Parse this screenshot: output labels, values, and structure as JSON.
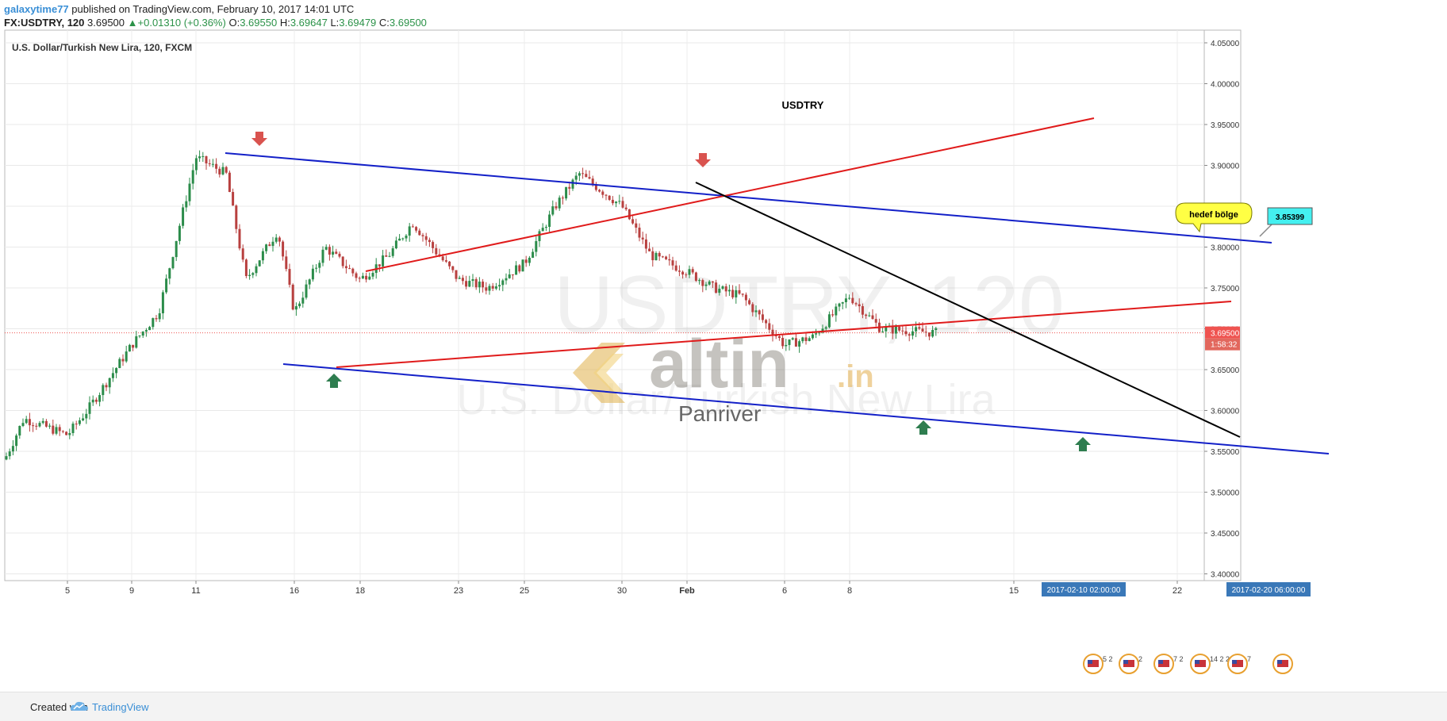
{
  "header": {
    "author": "galaxytime77",
    "published": "published on TradingView.com, February 10, 2017 14:01 UTC",
    "symbol": "FX:USDTRY, 120",
    "last": "3.69500",
    "change": "+0.01310 (+0.36%)",
    "o_label": "O:",
    "o_value": "3.69550",
    "h_label": "H:",
    "h_value": "3.69647",
    "l_label": "L:",
    "l_value": "3.69479",
    "c_label": "C:",
    "c_value": "3.69500"
  },
  "chart_data": {
    "type": "candlestick",
    "title": "U.S. Dollar/Turkish New Lira, 120, FXCM",
    "annotation_title": "USDTRY",
    "ylim": [
      3.39,
      4.06
    ],
    "y_ticks": [
      "4.05000",
      "4.00000",
      "3.95000",
      "3.90000",
      "3.85000",
      "3.80000",
      "3.75000",
      "3.70000",
      "3.65000",
      "3.60000",
      "3.55000",
      "3.50000",
      "3.45000",
      "3.40000"
    ],
    "x_ticks": [
      "5",
      "9",
      "11",
      "16",
      "18",
      "23",
      "25",
      "30",
      "Feb",
      "6",
      "8",
      "15",
      "22"
    ],
    "x_labels_highlight": [
      "2017-02-10 02:00:00",
      "2017-02-20 06:00:00"
    ],
    "current_price": "3.69500",
    "countdown": "1:58:32",
    "grid": true,
    "price_path": [
      [
        "2017-01-03",
        3.54
      ],
      [
        "2017-01-04",
        3.59
      ],
      [
        "2017-01-05",
        3.57
      ],
      [
        "2017-01-06",
        3.6
      ],
      [
        "2017-01-09",
        3.68
      ],
      [
        "2017-01-10",
        3.72
      ],
      [
        "2017-01-11",
        3.91
      ],
      [
        "2017-01-12",
        3.89
      ],
      [
        "2017-01-13",
        3.76
      ],
      [
        "2017-01-15",
        3.82
      ],
      [
        "2017-01-16",
        3.72
      ],
      [
        "2017-01-17",
        3.8
      ],
      [
        "2017-01-18",
        3.76
      ],
      [
        "2017-01-19",
        3.79
      ],
      [
        "2017-01-20",
        3.83
      ],
      [
        "2017-01-23",
        3.76
      ],
      [
        "2017-01-24",
        3.75
      ],
      [
        "2017-01-25",
        3.78
      ],
      [
        "2017-01-26",
        3.85
      ],
      [
        "2017-01-27",
        3.89
      ],
      [
        "2017-01-30",
        3.85
      ],
      [
        "2017-01-31",
        3.79
      ],
      [
        "2017-02-01",
        3.77
      ],
      [
        "2017-02-02",
        3.75
      ],
      [
        "2017-02-03",
        3.74
      ],
      [
        "2017-02-06",
        3.68
      ],
      [
        "2017-02-07",
        3.69
      ],
      [
        "2017-02-08",
        3.74
      ],
      [
        "2017-02-09",
        3.7
      ],
      [
        "2017-02-10",
        3.695
      ]
    ],
    "drawings": {
      "blue_upper": [
        "3.94 (Jan 11)",
        "3.85 (Feb 18)"
      ],
      "blue_lower": [
        "3.72 (Jan 14)",
        "3.625 (Feb 19)"
      ],
      "red_upper": [
        "3.815 (Jan 16)",
        "3.98 (Feb 12)"
      ],
      "red_lower": [
        "3.715 (Jan 16)",
        "3.785 (Feb 16)"
      ],
      "black_trend": [
        "3.91 (Jan 28)",
        "3.645 (Feb 15)"
      ]
    },
    "callout_text": "hedef bölge",
    "price_label": "3.85399",
    "watermark_symbol": "USDTRY, 120",
    "watermark_name": "U.S. Dollar/Turkish New Lira",
    "logo_text": "altin",
    "logo_suffix": ".in",
    "logo_caption": "Panriver",
    "event_badges": [
      "5 2",
      "2",
      "7 2",
      "14 2 2",
      "7",
      ""
    ]
  },
  "colors": {
    "up": "#2b8c4a",
    "down": "#b8403f",
    "trend_blue": "#1320c8",
    "trend_red": "#e01b1b",
    "trend_black": "#000000",
    "arrow_down": "#d9534f",
    "arrow_up": "#2e7d4f",
    "callout_yellow": "#ffff44",
    "price_tag": "#44f0f0",
    "axis_highlight": "#3a78b8",
    "last_price": "#ef5350"
  },
  "footer": {
    "created": "Created with",
    "brand": "TradingView"
  }
}
